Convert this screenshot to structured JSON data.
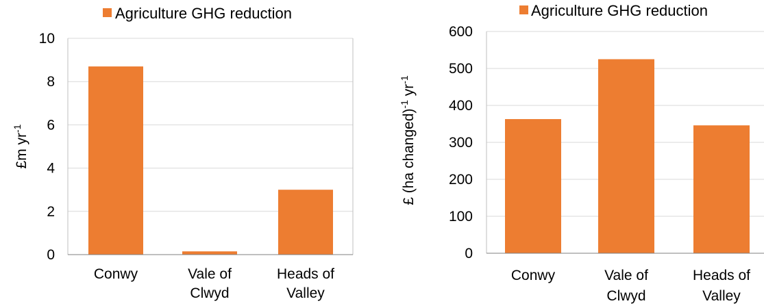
{
  "colors": {
    "bar": "#ed7d31",
    "grid": "#d9d9d9",
    "axis": "#7f7f7f"
  },
  "chart_data": [
    {
      "type": "bar",
      "categories": [
        "Conwy",
        "Vale of Clwyd",
        "Heads of Valley"
      ],
      "category_lines": [
        [
          "Conwy"
        ],
        [
          "Vale of",
          "Clwyd"
        ],
        [
          "Heads of",
          "Valley"
        ]
      ],
      "series": [
        {
          "name": "Agriculture GHG reduction",
          "values": [
            8.7,
            0.15,
            3.0
          ]
        }
      ],
      "ylabel": {
        "base": "£m yr",
        "sup": "-1"
      },
      "ylim": [
        0,
        10
      ],
      "yticks": [
        0,
        2,
        4,
        6,
        8,
        10
      ],
      "grid": true,
      "legend": "top"
    },
    {
      "type": "bar",
      "categories": [
        "Conwy",
        "Vale of Clwyd",
        "Heads of Valley"
      ],
      "category_lines": [
        [
          "Conwy"
        ],
        [
          "Vale of",
          "Clwyd"
        ],
        [
          "Heads of",
          "Valley"
        ]
      ],
      "series": [
        {
          "name": "Agriculture GHG reduction",
          "values": [
            363,
            525,
            346
          ]
        }
      ],
      "ylabel": {
        "part1": "£ (ha changed)",
        "sup1": "-1",
        "part2": " yr",
        "sup2": "-1"
      },
      "ylim": [
        0,
        600
      ],
      "yticks": [
        0,
        100,
        200,
        300,
        400,
        500,
        600
      ],
      "grid": true,
      "legend": "top"
    }
  ]
}
